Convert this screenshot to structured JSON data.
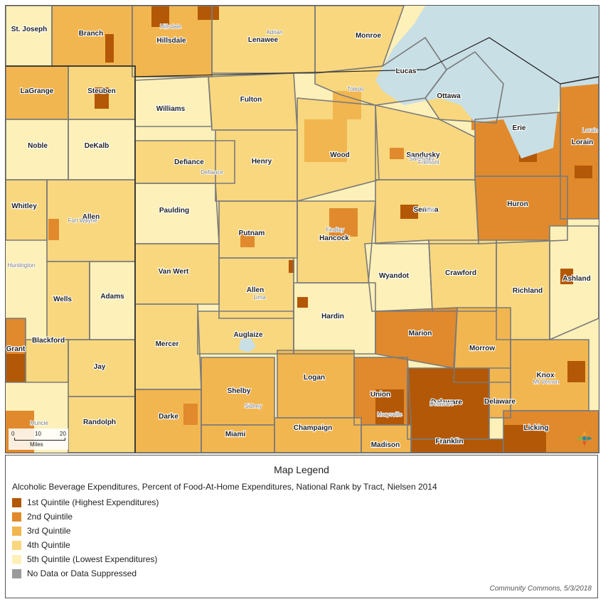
{
  "map": {
    "colors": {
      "q1": "#b35806",
      "q2": "#e08a2d",
      "q3": "#f2b650",
      "q4": "#f8d77e",
      "q5": "#fdf0b8",
      "no_data": "#9b9b9b",
      "water": "#c8dfe5",
      "boundary": "#7a7a7a",
      "state_line": "#222222"
    },
    "counties": [
      {
        "name": "St. Joseph",
        "quintile": 5
      },
      {
        "name": "Branch",
        "quintile": 3
      },
      {
        "name": "Hillsdale",
        "quintile": 3
      },
      {
        "name": "Lenawee",
        "quintile": 4
      },
      {
        "name": "Monroe",
        "quintile": 4
      },
      {
        "name": "Lucas",
        "quintile": 4
      },
      {
        "name": "Ottawa",
        "quintile": 4
      },
      {
        "name": "LaGrange",
        "quintile": 3
      },
      {
        "name": "Steuben",
        "quintile": 4
      },
      {
        "name": "Williams",
        "quintile": 5
      },
      {
        "name": "Fulton",
        "quintile": 4
      },
      {
        "name": "Erie",
        "quintile": 2
      },
      {
        "name": "Lorain",
        "quintile": 2
      },
      {
        "name": "Noble",
        "quintile": 5
      },
      {
        "name": "DeKalb",
        "quintile": 5
      },
      {
        "name": "Defiance",
        "quintile": 4
      },
      {
        "name": "Henry",
        "quintile": 4
      },
      {
        "name": "Wood",
        "quintile": 4
      },
      {
        "name": "Sandusky",
        "quintile": 4
      },
      {
        "name": "Whitley",
        "quintile": 4
      },
      {
        "name": "Allen",
        "quintile": 4
      },
      {
        "name": "Paulding",
        "quintile": 5
      },
      {
        "name": "Putnam",
        "quintile": 4
      },
      {
        "name": "Hancock",
        "quintile": 4
      },
      {
        "name": "Seneca",
        "quintile": 4
      },
      {
        "name": "Huron",
        "quintile": 2
      },
      {
        "name": "Van Wert",
        "quintile": 4
      },
      {
        "name": "Allen",
        "quintile": 4
      },
      {
        "name": "Wyandot",
        "quintile": 5
      },
      {
        "name": "Crawford",
        "quintile": 4
      },
      {
        "name": "Richland",
        "quintile": 4
      },
      {
        "name": "Ashland",
        "quintile": 5
      },
      {
        "name": "Wells",
        "quintile": 4
      },
      {
        "name": "Adams",
        "quintile": 5
      },
      {
        "name": "Hardin",
        "quintile": 5
      },
      {
        "name": "Grant",
        "quintile": 2
      },
      {
        "name": "Blackford",
        "quintile": 4
      },
      {
        "name": "Mercer",
        "quintile": 4
      },
      {
        "name": "Auglaize",
        "quintile": 4
      },
      {
        "name": "Marion",
        "quintile": 2
      },
      {
        "name": "Morrow",
        "quintile": 3
      },
      {
        "name": "Jay",
        "quintile": 4
      },
      {
        "name": "Logan",
        "quintile": 3
      },
      {
        "name": "Knox",
        "quintile": 3
      },
      {
        "name": "Shelby",
        "quintile": 3
      },
      {
        "name": "Union",
        "quintile": 2
      },
      {
        "name": "Delaware",
        "quintile": 1
      },
      {
        "name": "Delaware",
        "quintile": 3
      },
      {
        "name": "Randolph",
        "quintile": 4
      },
      {
        "name": "Darke",
        "quintile": 3
      },
      {
        "name": "Licking",
        "quintile": 2
      },
      {
        "name": "Miami",
        "quintile": 3
      },
      {
        "name": "Champaign",
        "quintile": 3
      },
      {
        "name": "Madison",
        "quintile": 3
      },
      {
        "name": "Franklin",
        "quintile": 1
      }
    ],
    "cities": [
      "Hillsdale",
      "Adrian",
      "Toledo",
      "Sandusky",
      "Lorain",
      "Fremont",
      "Defiance",
      "Fort Wayne",
      "Findlay",
      "Tiffin",
      "Lima",
      "Huntington",
      "Marysville",
      "Delaware",
      "Muncie",
      "Sidney",
      "Mt Vernon"
    ],
    "scale": {
      "ticks": [
        "0",
        "10",
        "20"
      ],
      "unit": "Miles"
    }
  },
  "legend": {
    "title": "Map Legend",
    "subtitle": "Alcoholic Beverage Expenditures, Percent of Food-At-Home Expenditures, National Rank by Tract, Nielsen 2014",
    "items": [
      {
        "label": "1st Quintile (Highest Expenditures)",
        "color": "#b35806"
      },
      {
        "label": "2nd Quintile",
        "color": "#e08a2d"
      },
      {
        "label": "3rd Quintile",
        "color": "#f2b650"
      },
      {
        "label": "4th Quintile",
        "color": "#f8d77e"
      },
      {
        "label": "5th Quintile (Lowest Expenditures)",
        "color": "#fdf0b8"
      },
      {
        "label": "No Data or Data Suppressed",
        "color": "#9b9b9b"
      }
    ]
  },
  "attribution": "Community Commons, 5/3/2018"
}
